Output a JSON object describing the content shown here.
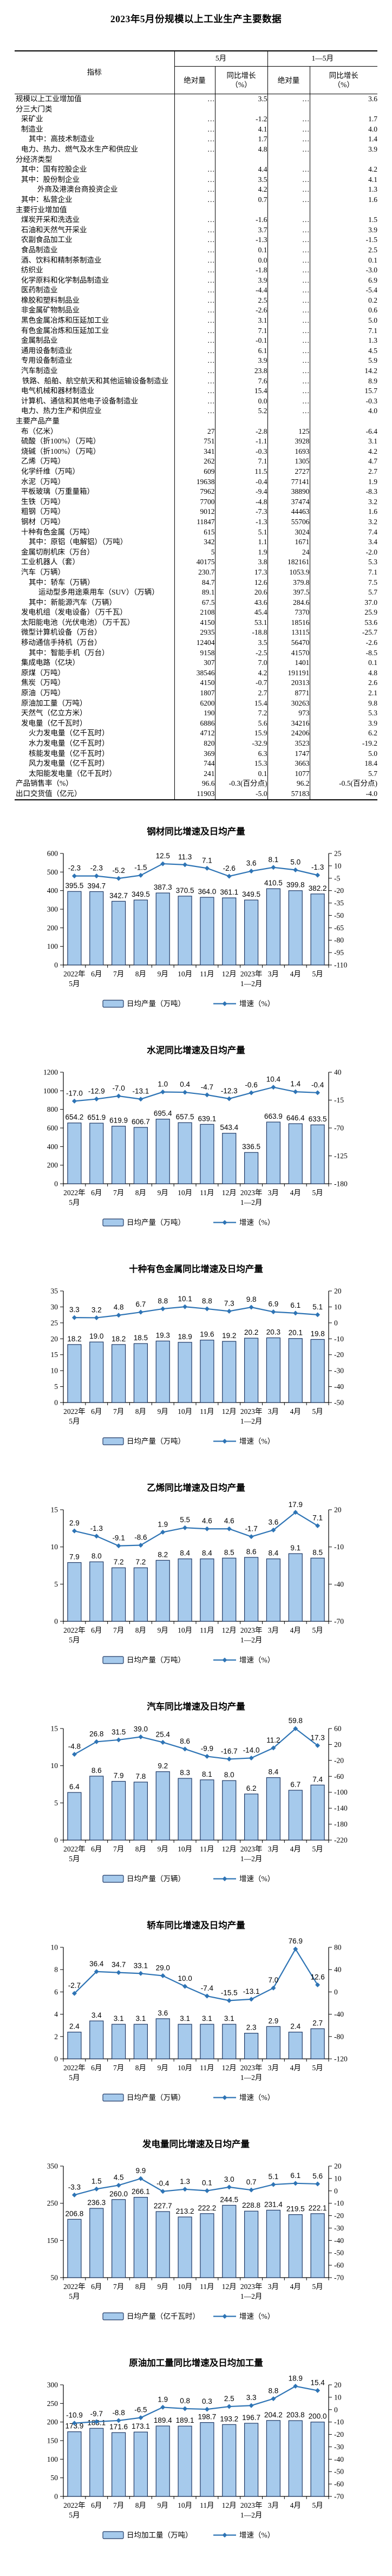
{
  "page_title": "2023年5月份规模以上工业生产主要数据",
  "table": {
    "headers": {
      "indicator": "指标",
      "abs": "绝对量",
      "growth": "同比增长",
      "growth_unit": "（%）"
    },
    "col_groups": [
      "5月",
      "1—5月"
    ],
    "rows": [
      {
        "t": "规模以上工业增加值",
        "b": true,
        "in": 0,
        "v": [
          "…",
          "3.5",
          "…",
          "3.6"
        ]
      },
      {
        "t": "分三大门类",
        "b": true,
        "in": 0
      },
      {
        "t": "采矿业",
        "in": 1,
        "v": [
          "…",
          "-1.2",
          "…",
          "1.7"
        ]
      },
      {
        "t": "制造业",
        "in": 1,
        "v": [
          "…",
          "4.1",
          "…",
          "4.0"
        ]
      },
      {
        "t": "其中：高技术制造业",
        "in": 2,
        "v": [
          "…",
          "1.7",
          "…",
          "1.4"
        ]
      },
      {
        "t": "电力、热力、燃气及水生产和供应业",
        "in": 1,
        "v": [
          "…",
          "4.8",
          "…",
          "3.9"
        ]
      },
      {
        "t": "分经济类型",
        "b": true,
        "in": 0
      },
      {
        "t": "其中：国有控股企业",
        "in": 1,
        "v": [
          "…",
          "4.4",
          "…",
          "4.2"
        ]
      },
      {
        "t": "其中：股份制企业",
        "in": 1,
        "v": [
          "…",
          "3.5",
          "…",
          "4.1"
        ]
      },
      {
        "t": "外商及港澳台商投资企业",
        "in": 3,
        "v": [
          "…",
          "4.2",
          "…",
          "1.3"
        ]
      },
      {
        "t": "其中：私营企业",
        "in": 1,
        "v": [
          "…",
          "0.7",
          "…",
          "1.6"
        ]
      },
      {
        "t": "主要行业增加值",
        "b": true,
        "in": 0
      },
      {
        "t": "煤炭开采和洗选业",
        "in": 1,
        "v": [
          "…",
          "-1.6",
          "…",
          "1.5"
        ]
      },
      {
        "t": "石油和天然气开采业",
        "in": 1,
        "v": [
          "…",
          "3.7",
          "…",
          "3.9"
        ]
      },
      {
        "t": "农副食品加工业",
        "in": 1,
        "v": [
          "…",
          "-1.3",
          "…",
          "-1.5"
        ]
      },
      {
        "t": "食品制造业",
        "in": 1,
        "v": [
          "…",
          "0.1",
          "…",
          "2.5"
        ]
      },
      {
        "t": "酒、饮料和精制茶制造业",
        "in": 1,
        "v": [
          "…",
          "0.0",
          "…",
          "0.1"
        ]
      },
      {
        "t": "纺织业",
        "in": 1,
        "v": [
          "…",
          "-1.8",
          "…",
          "-3.0"
        ]
      },
      {
        "t": "化学原料和化学制品制造业",
        "in": 1,
        "v": [
          "…",
          "3.9",
          "…",
          "6.9"
        ]
      },
      {
        "t": "医药制造业",
        "in": 1,
        "v": [
          "…",
          "-4.4",
          "…",
          "-5.4"
        ]
      },
      {
        "t": "橡胶和塑料制品业",
        "in": 1,
        "v": [
          "…",
          "2.5",
          "…",
          "0.2"
        ]
      },
      {
        "t": "非金属矿物制品业",
        "in": 1,
        "v": [
          "…",
          "-2.6",
          "…",
          "0.6"
        ]
      },
      {
        "t": "黑色金属冶炼和压延加工业",
        "in": 1,
        "v": [
          "…",
          "3.1",
          "…",
          "5.0"
        ]
      },
      {
        "t": "有色金属冶炼和压延加工业",
        "in": 1,
        "v": [
          "…",
          "7.1",
          "…",
          "7.1"
        ]
      },
      {
        "t": "金属制品业",
        "in": 1,
        "v": [
          "…",
          "-0.1",
          "…",
          "1.3"
        ]
      },
      {
        "t": "通用设备制造业",
        "in": 1,
        "v": [
          "…",
          "6.1",
          "…",
          "4.5"
        ]
      },
      {
        "t": "专用设备制造业",
        "in": 1,
        "v": [
          "…",
          "3.9",
          "…",
          "5.9"
        ]
      },
      {
        "t": "汽车制造业",
        "in": 1,
        "v": [
          "…",
          "23.8",
          "…",
          "14.2"
        ]
      },
      {
        "t": "铁路、船舶、航空航天和其他运输设备制造业",
        "hang": "rail",
        "v": [
          "…",
          "7.6",
          "…",
          "8.9"
        ]
      },
      {
        "t": "电气机械和器材制造业",
        "in": 1,
        "v": [
          "…",
          "15.4",
          "…",
          "15.7"
        ]
      },
      {
        "t": "计算机、通信和其他电子设备制造业",
        "in": 1,
        "v": [
          "…",
          "0.0",
          "…",
          "-0.3"
        ]
      },
      {
        "t": "电力、热力生产和供应业",
        "in": 1,
        "v": [
          "…",
          "5.2",
          "…",
          "4.0"
        ]
      },
      {
        "t": "主要产品产量",
        "b": true,
        "in": 0
      },
      {
        "t": "布（亿米）",
        "in": 1,
        "v": [
          "27",
          "-2.8",
          "125",
          "-6.4"
        ]
      },
      {
        "t": "硫酸（折100%）（万吨）",
        "in": 1,
        "v": [
          "751",
          "-1.1",
          "3928",
          "3.1"
        ]
      },
      {
        "t": "烧碱（折100%）（万吨）",
        "in": 1,
        "v": [
          "341",
          "-0.3",
          "1693",
          "4.2"
        ]
      },
      {
        "t": "乙烯（万吨）",
        "in": 1,
        "v": [
          "262",
          "7.1",
          "1305",
          "4.7"
        ]
      },
      {
        "t": "化学纤维（万吨）",
        "in": 1,
        "v": [
          "609",
          "11.5",
          "2727",
          "2.7"
        ]
      },
      {
        "t": "水泥（万吨）",
        "in": 1,
        "v": [
          "19638",
          "-0.4",
          "77141",
          "1.9"
        ]
      },
      {
        "t": "平板玻璃（万重量箱）",
        "in": 1,
        "v": [
          "7962",
          "-9.4",
          "38890",
          "-8.3"
        ]
      },
      {
        "t": "生铁（万吨）",
        "in": 1,
        "v": [
          "7700",
          "-4.8",
          "37474",
          "3.2"
        ]
      },
      {
        "t": "粗钢（万吨）",
        "in": 1,
        "v": [
          "9012",
          "-7.3",
          "44463",
          "1.6"
        ]
      },
      {
        "t": "钢材（万吨）",
        "in": 1,
        "v": [
          "11847",
          "-1.3",
          "55706",
          "3.2"
        ]
      },
      {
        "t": "十种有色金属（万吨）",
        "in": 1,
        "v": [
          "615",
          "5.1",
          "3024",
          "7.4"
        ]
      },
      {
        "t": "其中：原铝（电解铝）（万吨）",
        "in": 2,
        "v": [
          "342",
          "1.1",
          "1671",
          "3.4"
        ]
      },
      {
        "t": "金属切削机床（万台）",
        "in": 1,
        "v": [
          "5",
          "1.9",
          "24",
          "-2.0"
        ]
      },
      {
        "t": "工业机器人（套）",
        "in": 1,
        "v": [
          "40175",
          "3.8",
          "182161",
          "5.3"
        ]
      },
      {
        "t": "汽车（万辆）",
        "in": 1,
        "v": [
          "230.7",
          "17.3",
          "1053.9",
          "7.1"
        ]
      },
      {
        "t": "其中：轿车（万辆）",
        "in": 2,
        "v": [
          "84.7",
          "12.6",
          "379.8",
          "7.5"
        ]
      },
      {
        "t": "运动型多用途乘用车（SUV）（万辆）",
        "hang": "suv",
        "v": [
          "89.1",
          "20.6",
          "397.5",
          "5.7"
        ]
      },
      {
        "t": "其中：新能源汽车（万辆）",
        "in": 2,
        "v": [
          "67.5",
          "43.6",
          "284.6",
          "37.0"
        ]
      },
      {
        "t": "发电机组（发电设备）（万千瓦）",
        "in": 1,
        "v": [
          "2108",
          "45.4",
          "7370",
          "25.9"
        ]
      },
      {
        "t": "太阳能电池（光伏电池）（万千瓦）",
        "in": 1,
        "v": [
          "4150",
          "53.1",
          "18516",
          "53.6"
        ]
      },
      {
        "t": "微型计算机设备（万台）",
        "in": 1,
        "v": [
          "2935",
          "-18.8",
          "13115",
          "-25.7"
        ]
      },
      {
        "t": "移动通信手持机（万台）",
        "in": 1,
        "v": [
          "12404",
          "3.5",
          "56470",
          "-2.6"
        ]
      },
      {
        "t": "其中：智能手机（万台）",
        "in": 2,
        "v": [
          "9158",
          "-2.5",
          "41570",
          "-8.5"
        ]
      },
      {
        "t": "集成电路（亿块）",
        "in": 1,
        "v": [
          "307",
          "7.0",
          "1401",
          "0.1"
        ]
      },
      {
        "t": "原煤（万吨）",
        "in": 1,
        "v": [
          "38546",
          "4.2",
          "191191",
          "4.8"
        ]
      },
      {
        "t": "焦炭（万吨）",
        "in": 1,
        "v": [
          "4150",
          "-0.7",
          "20313",
          "2.6"
        ]
      },
      {
        "t": "原油（万吨）",
        "in": 1,
        "v": [
          "1807",
          "2.7",
          "8771",
          "2.1"
        ]
      },
      {
        "t": "原油加工量（万吨）",
        "in": 1,
        "v": [
          "6200",
          "15.4",
          "30263",
          "9.8"
        ]
      },
      {
        "t": "天然气（亿立方米）",
        "in": 1,
        "v": [
          "190",
          "7.2",
          "973",
          "5.3"
        ]
      },
      {
        "t": "发电量（亿千瓦时）",
        "in": 1,
        "v": [
          "6886",
          "5.6",
          "34216",
          "3.9"
        ]
      },
      {
        "t": "火力发电量（亿千瓦时）",
        "in": 2,
        "v": [
          "4712",
          "15.9",
          "24206",
          "6.2"
        ]
      },
      {
        "t": "水力发电量（亿千瓦时）",
        "in": 2,
        "v": [
          "820",
          "-32.9",
          "3523",
          "-19.2"
        ]
      },
      {
        "t": "核能发电量（亿千瓦时）",
        "in": 2,
        "v": [
          "369",
          "6.3",
          "1747",
          "5.0"
        ]
      },
      {
        "t": "风力发电量（亿千瓦时）",
        "in": 2,
        "v": [
          "744",
          "15.3",
          "3663",
          "18.4"
        ]
      },
      {
        "t": "太阳能发电量（亿千瓦时）",
        "in": 2,
        "v": [
          "241",
          "0.1",
          "1077",
          "5.7"
        ]
      },
      {
        "t": "产品销售率（%）",
        "in": 0,
        "v": [
          "96.6",
          "-0.3(百分点)",
          "96.2",
          "-0.5(百分点)"
        ]
      },
      {
        "t": "出口交货值（亿元）",
        "in": 0,
        "v": [
          "11903",
          "-5.0",
          "57183",
          "-4.0"
        ]
      }
    ]
  },
  "charts_common": {
    "type": "bar+line",
    "categories": [
      "2022年|5月",
      "6月",
      "7月",
      "8月",
      "9月",
      "10月",
      "11月",
      "12月",
      "2023年|1—2月",
      "3月",
      "4月",
      "5月"
    ],
    "line_legend": "增速（%）",
    "colors": {
      "bar_fill": "#A6CAEC",
      "bar_stroke": "#1F3864",
      "line": "#2E74B5",
      "text": "#000000"
    }
  },
  "chart_data": [
    {
      "title": "钢材同比增速及日均产量",
      "bar_legend": "日均产量（万吨）",
      "bars": [
        "395.5",
        "394.7",
        "342.7",
        "349.5",
        "387.3",
        "370.5",
        "364.0",
        "361.1",
        "349.5",
        "410.5",
        "399.8",
        "382.2"
      ],
      "line": [
        "-2.3",
        "-2.3",
        "-5.2",
        "-1.5",
        "12.5",
        "11.3",
        "7.1",
        "-2.6",
        "3.6",
        "8.1",
        "5.0",
        "-1.3"
      ],
      "left": {
        "min": 0,
        "max": 600,
        "step": 100
      },
      "right": {
        "min": -110,
        "max": 25,
        "step": 15
      }
    },
    {
      "title": "水泥同比增速及日均产量",
      "bar_legend": "日均产量（万吨）",
      "bars": [
        "654.2",
        "651.9",
        "619.9",
        "606.7",
        "695.4",
        "657.5",
        "639.1",
        "543.4",
        "336.5",
        "663.9",
        "646.4",
        "633.5"
      ],
      "line": [
        "-17.0",
        "-12.9",
        "-7.0",
        "-13.1",
        "1.0",
        "0.4",
        "-4.7",
        "-12.3",
        "-0.6",
        "10.4",
        "1.4",
        "-0.4"
      ],
      "left": {
        "min": 0,
        "max": 1200,
        "step": 200
      },
      "right": {
        "min": -180,
        "max": 40,
        "step": 55
      }
    },
    {
      "title": "十种有色金属同比增速及日均产量",
      "bar_legend": "日均产量（万吨）",
      "bars": [
        "18.2",
        "19.0",
        "18.2",
        "18.5",
        "19.3",
        "18.9",
        "19.6",
        "19.2",
        "20.2",
        "20.3",
        "20.1",
        "19.8"
      ],
      "line": [
        "3.3",
        "3.2",
        "4.8",
        "6.7",
        "8.8",
        "10.1",
        "8.8",
        "7.3",
        "9.8",
        "6.9",
        "6.1",
        "5.1"
      ],
      "left": {
        "min": 0,
        "max": 35,
        "step": 5
      },
      "right": {
        "min": -50,
        "max": 20,
        "step": 10
      }
    },
    {
      "title": "乙烯同比增速及日均产量",
      "bar_legend": "日均产量（万吨）",
      "bars": [
        "7.9",
        "8.0",
        "7.2",
        "7.2",
        "8.2",
        "8.4",
        "8.4",
        "8.5",
        "8.6",
        "8.4",
        "9.1",
        "8.5"
      ],
      "line": [
        "2.9",
        "-1.3",
        "-9.1",
        "-8.6",
        "1.9",
        "5.5",
        "4.6",
        "4.6",
        "-1.7",
        "3.6",
        "17.9",
        "7.1"
      ],
      "left": {
        "min": 0,
        "max": 15,
        "step": 5
      },
      "right": {
        "min": -70,
        "max": 20,
        "step": 30
      }
    },
    {
      "title": "汽车同比增速及日均产量",
      "bar_legend": "日均产量（万辆）",
      "bars": [
        "6.4",
        "8.6",
        "7.9",
        "7.8",
        "9.2",
        "8.3",
        "8.1",
        "8.0",
        "6.2",
        "8.4",
        "6.7",
        "7.4"
      ],
      "line": [
        "-4.8",
        "26.8",
        "31.5",
        "39.0",
        "25.4",
        "8.6",
        "-9.9",
        "-16.7",
        "-14.0",
        "11.2",
        "59.8",
        "17.3"
      ],
      "left": {
        "min": 0,
        "max": 15,
        "step": 5
      },
      "right": {
        "min": -220,
        "max": 60,
        "step": 40
      }
    },
    {
      "title": "轿车同比增速及日均产量",
      "bar_legend": "日均产量（万辆）",
      "bars": [
        "2.4",
        "3.4",
        "3.1",
        "3.1",
        "3.6",
        "3.1",
        "3.1",
        "3.1",
        "2.3",
        "2.9",
        "2.4",
        "2.7"
      ],
      "line": [
        "-2.7",
        "36.4",
        "34.7",
        "33.1",
        "29.0",
        "10.0",
        "-7.4",
        "-15.5",
        "-13.1",
        "7.0",
        "76.9",
        "12.6"
      ],
      "left": {
        "min": 0,
        "max": 10,
        "step": 2
      },
      "right": {
        "min": -120,
        "max": 80,
        "step": 40
      }
    },
    {
      "title": "发电量同比增速及日均产量",
      "bar_legend": "日均产量（亿千瓦时）",
      "bars": [
        "206.8",
        "236.3",
        "260.0",
        "266.1",
        "227.7",
        "213.2",
        "222.2",
        "244.5",
        "228.8",
        "231.4",
        "219.5",
        "222.1"
      ],
      "line": [
        "-3.3",
        "1.5",
        "4.5",
        "9.9",
        "-0.4",
        "1.3",
        "0.1",
        "3.0",
        "0.7",
        "5.1",
        "6.1",
        "5.6"
      ],
      "left": {
        "min": 50,
        "max": 350,
        "step": 100
      },
      "right": {
        "min": -70,
        "max": 20,
        "step": 10
      }
    },
    {
      "title": "原油加工量同比增速及日均加工量",
      "bar_legend": "日均加工量（万吨）",
      "bars": [
        "173.9",
        "183.1",
        "171.6",
        "173.1",
        "189.4",
        "189.1",
        "198.7",
        "193.2",
        "196.7",
        "204.2",
        "203.8",
        "200.0"
      ],
      "line": [
        "-10.9",
        "-9.7",
        "-8.8",
        "-6.5",
        "1.9",
        "0.8",
        "0.3",
        "2.5",
        "3.3",
        "8.8",
        "18.9",
        "15.4"
      ],
      "left": {
        "min": 0,
        "max": 300,
        "step": 50
      },
      "right": {
        "min": -70,
        "max": 20,
        "step": 10
      }
    }
  ]
}
